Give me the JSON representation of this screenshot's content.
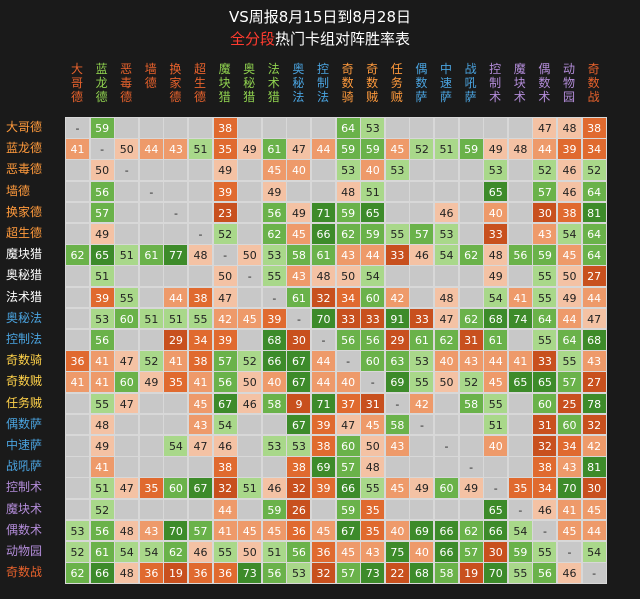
{
  "title": "VS周报8月15日到8月28日",
  "subtitle_red": "全分段",
  "subtitle_white": "热门卡组对阵胜率表",
  "chart_data": {
    "type": "heatmap",
    "title": "VS周报8月15日到8月28日 全分段热门卡组对阵胜率表",
    "columns": [
      "大哥德",
      "蓝龙德",
      "恶毒德",
      "墙德",
      "换家德",
      "超生德",
      "魔块猎",
      "奥秘猎",
      "法术猎",
      "奥秘法",
      "控制法",
      "奇数骑",
      "奇数贼",
      "任务贼",
      "偶数萨",
      "中速萨",
      "战吼萨",
      "控制术",
      "魔块术",
      "偶数术",
      "动物园",
      "奇数战"
    ],
    "column_colors": [
      "#e8622c",
      "#8fd14f",
      "#e8622c",
      "#e8622c",
      "#e8622c",
      "#e8622c",
      "#8fd14f",
      "#8fd14f",
      "#8fd14f",
      "#4aa3df",
      "#4aa3df",
      "#ff9a3c",
      "#ff9a3c",
      "#ff9a3c",
      "#4aa3df",
      "#4aa3df",
      "#4aa3df",
      "#b38cd9",
      "#b38cd9",
      "#b38cd9",
      "#b38cd9",
      "#e8622c"
    ],
    "rows": [
      "大哥德",
      "蓝龙德",
      "恶毒德",
      "墙德",
      "换家德",
      "超生德",
      "魔块猎",
      "奥秘猎",
      "法术猎",
      "奥秘法",
      "控制法",
      "奇数骑",
      "奇数贼",
      "任务贼",
      "偶数萨",
      "中速萨",
      "战吼萨",
      "控制术",
      "魔块术",
      "偶数术",
      "动物园",
      "奇数战"
    ],
    "row_colors": [
      "#ff9a3c",
      "#ff9a3c",
      "#ff9a3c",
      "#ff9a3c",
      "#ff9a3c",
      "#ff9a3c",
      "#ffffff",
      "#ffffff",
      "#ffffff",
      "#4aa3df",
      "#4aa3df",
      "#ffd24a",
      "#ffd24a",
      "#ffd24a",
      "#4aa3df",
      "#4aa3df",
      "#4aa3df",
      "#b38cd9",
      "#b38cd9",
      "#b38cd9",
      "#b38cd9",
      "#e8622c"
    ],
    "values": [
      [
        "-",
        "59",
        null,
        null,
        null,
        null,
        "38",
        null,
        null,
        null,
        null,
        "64",
        "53",
        null,
        null,
        null,
        null,
        null,
        null,
        "47",
        "48",
        "38"
      ],
      [
        "41",
        "-",
        "50",
        "44",
        "43",
        "51",
        "35",
        "49",
        "61",
        "47",
        "44",
        "59",
        "59",
        "45",
        "52",
        "51",
        "59",
        "49",
        "48",
        "44",
        "39",
        "34"
      ],
      [
        null,
        "50",
        "-",
        null,
        null,
        null,
        "49",
        null,
        "45",
        "40",
        null,
        "53",
        "40",
        "53",
        null,
        null,
        null,
        "53",
        null,
        "52",
        "46",
        "52"
      ],
      [
        null,
        "56",
        null,
        "-",
        null,
        null,
        "39",
        null,
        "49",
        null,
        null,
        "48",
        "51",
        null,
        null,
        null,
        null,
        "65",
        null,
        "57",
        "46",
        "64"
      ],
      [
        null,
        "57",
        null,
        null,
        "-",
        null,
        "23",
        null,
        "56",
        "49",
        "71",
        "59",
        "65",
        null,
        null,
        "46",
        null,
        "40",
        null,
        "30",
        "38",
        "81"
      ],
      [
        null,
        "49",
        null,
        null,
        null,
        "-",
        "52",
        null,
        "62",
        "45",
        "66",
        "62",
        "59",
        "55",
        "57",
        "53",
        null,
        "33",
        null,
        "43",
        "54",
        "64"
      ],
      [
        "62",
        "65",
        "51",
        "61",
        "77",
        "48",
        "-",
        "50",
        "53",
        "58",
        "61",
        "43",
        "44",
        "33",
        "46",
        "54",
        "62",
        "48",
        "56",
        "59",
        "45",
        "64"
      ],
      [
        null,
        "51",
        null,
        null,
        null,
        null,
        "50",
        "-",
        "55",
        "43",
        "48",
        "50",
        "54",
        null,
        null,
        null,
        null,
        "49",
        null,
        "55",
        "50",
        "27"
      ],
      [
        null,
        "39",
        "55",
        null,
        "44",
        "38",
        "47",
        null,
        "-",
        "61",
        "32",
        "34",
        "60",
        "42",
        null,
        "48",
        null,
        "54",
        "41",
        "55",
        "49",
        "44"
      ],
      [
        null,
        "53",
        "60",
        "51",
        "51",
        "55",
        "42",
        "45",
        "39",
        "-",
        "70",
        "33",
        "33",
        "91",
        "33",
        "47",
        "62",
        "68",
        "74",
        "64",
        "44",
        "47"
      ],
      [
        null,
        "56",
        null,
        null,
        "29",
        "34",
        "39",
        null,
        "68",
        "30",
        "-",
        "56",
        "56",
        "29",
        "61",
        "62",
        "31",
        "61",
        null,
        "55",
        "64",
        "68"
      ],
      [
        "36",
        "41",
        "47",
        "52",
        "41",
        "38",
        "57",
        "52",
        "66",
        "67",
        "44",
        "-",
        "60",
        "63",
        "53",
        "40",
        "43",
        "44",
        "41",
        "33",
        "55",
        "43"
      ],
      [
        "41",
        "41",
        "60",
        "49",
        "35",
        "41",
        "56",
        "50",
        "40",
        "67",
        "44",
        "40",
        "-",
        "69",
        "55",
        "50",
        "52",
        "45",
        "65",
        "65",
        "57",
        "27"
      ],
      [
        null,
        "55",
        "47",
        null,
        null,
        "45",
        "67",
        "46",
        "58",
        "9",
        "71",
        "37",
        "31",
        "-",
        "42",
        null,
        "58",
        "55",
        null,
        "60",
        "25",
        "78"
      ],
      [
        null,
        "48",
        null,
        null,
        null,
        "43",
        "54",
        null,
        null,
        "67",
        "39",
        "47",
        "45",
        "58",
        "-",
        null,
        null,
        "51",
        null,
        "31",
        "60",
        "32"
      ],
      [
        null,
        "49",
        null,
        null,
        "54",
        "47",
        "46",
        null,
        "53",
        "53",
        "38",
        "60",
        "50",
        "43",
        null,
        "-",
        null,
        "40",
        null,
        "32",
        "34",
        "42"
      ],
      [
        null,
        "41",
        null,
        null,
        null,
        null,
        "38",
        null,
        null,
        "38",
        "69",
        "57",
        "48",
        null,
        null,
        null,
        "-",
        null,
        null,
        "38",
        "43",
        "81"
      ],
      [
        null,
        "51",
        "47",
        "35",
        "60",
        "67",
        "32",
        "51",
        "46",
        "32",
        "39",
        "66",
        "55",
        "45",
        "49",
        "60",
        "49",
        "-",
        "35",
        "34",
        "70",
        "30"
      ],
      [
        null,
        "52",
        null,
        null,
        null,
        null,
        "44",
        null,
        "59",
        "26",
        null,
        "59",
        "35",
        null,
        null,
        null,
        null,
        "65",
        "-",
        "46",
        "41",
        "45"
      ],
      [
        "53",
        "56",
        "48",
        "43",
        "70",
        "57",
        "41",
        "45",
        "45",
        "36",
        "45",
        "67",
        "35",
        "40",
        "69",
        "66",
        "62",
        "66",
        "54",
        "-",
        "45",
        "44"
      ],
      [
        "52",
        "61",
        "54",
        "54",
        "62",
        "46",
        "55",
        "50",
        "51",
        "56",
        "36",
        "45",
        "43",
        "75",
        "40",
        "66",
        "57",
        "30",
        "59",
        "55",
        "-",
        "54"
      ],
      [
        "62",
        "66",
        "48",
        "36",
        "19",
        "36",
        "36",
        "73",
        "56",
        "53",
        "32",
        "57",
        "73",
        "22",
        "68",
        "58",
        "19",
        "70",
        "55",
        "56",
        "46",
        "-"
      ]
    ]
  }
}
